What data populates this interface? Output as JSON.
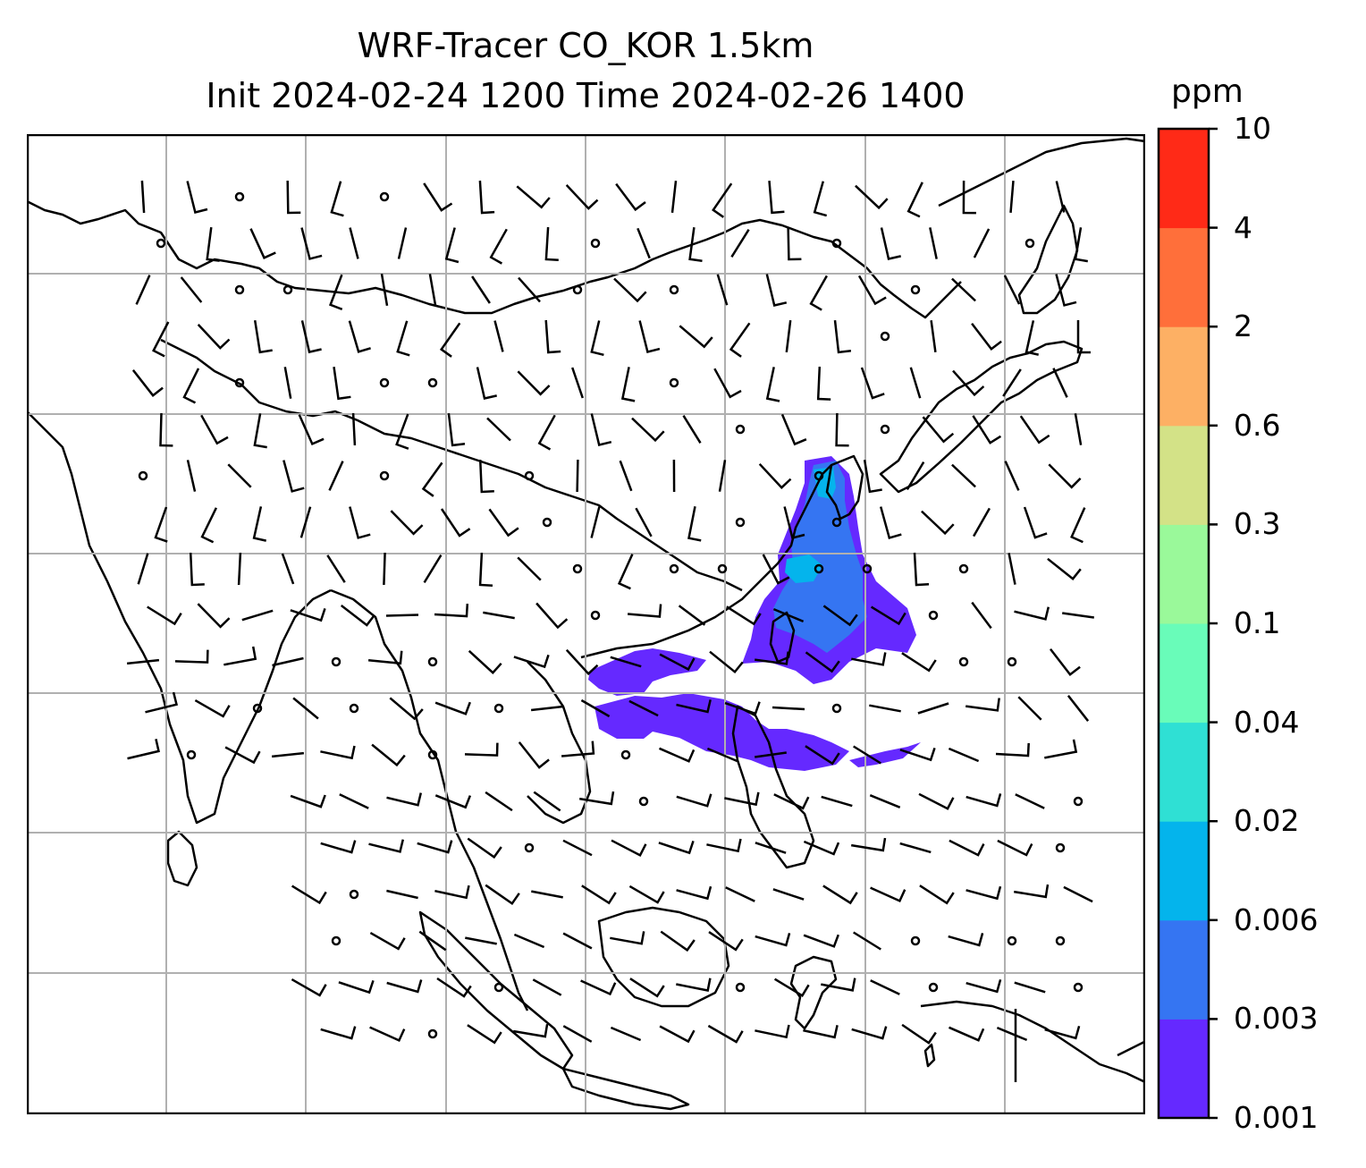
{
  "title": {
    "line1": "WRF-Tracer CO_KOR 1.5km",
    "line2": "Init 2024-02-24 1200 Time 2024-02-26 1400"
  },
  "colorbar": {
    "unit": "ppm",
    "levels": [
      "0.001",
      "0.003",
      "0.006",
      "0.02",
      "0.04",
      "0.1",
      "0.3",
      "0.6",
      "2",
      "4",
      "10"
    ],
    "colors": [
      "#6529ff",
      "#3575f2",
      "#04b4ec",
      "#2fe0d4",
      "#69fcb9",
      "#9af99a",
      "#d3e287",
      "#fdb064",
      "#ff6f3a",
      "#ff2a17"
    ]
  },
  "map": {
    "style": {
      "land_outline": "#000000",
      "grid": "#b0b0b0",
      "barb": "#000000"
    },
    "tracer_color_low": "#6529ff",
    "tracer_color_mid": "#3575f2",
    "tracer_color_high": "#04b4ec"
  }
}
